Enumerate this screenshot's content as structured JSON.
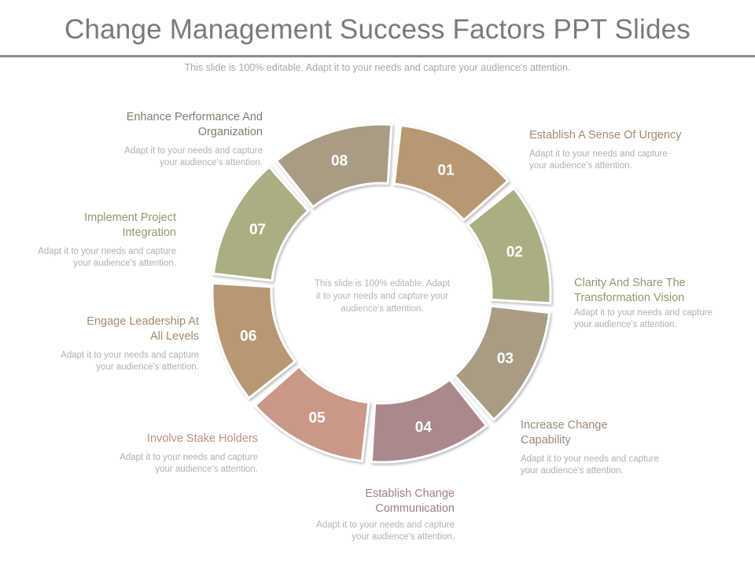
{
  "title": "Change Management Success Factors PPT Slides",
  "subtitle": "This slide is 100% editable. Adapt it to your needs and capture your audience's attention.",
  "center_text": "This slide is 100% editable. Adapt it to your needs and capture your audience's attention.",
  "segments": [
    {
      "number": "01",
      "title": "Establish A Sense Of Urgency",
      "desc": "Adapt it to your needs and capture your audience's attention.",
      "color": "#b79873",
      "label_color": "#a38a6c"
    },
    {
      "number": "02",
      "title": "Clarity And Share The Transformation Vision",
      "desc": "Adapt it to your needs and capture your audience's attention.",
      "color": "#aaae80",
      "label_color": "#93976d"
    },
    {
      "number": "03",
      "title": "Increase Change Capability",
      "desc": "Adapt it to your needs and capture your audience's attention.",
      "color": "#a99c85",
      "label_color": "#98897a"
    },
    {
      "number": "04",
      "title": "Establish Change Communication",
      "desc": "Adapt it to your needs and capture your audience's attention.",
      "color": "#ad888a",
      "label_color": "#a07e80"
    },
    {
      "number": "05",
      "title": "Involve  Stake Holders",
      "desc": "Adapt it to your needs and capture your audience's attention.",
      "color": "#c99888",
      "label_color": "#bd8e7e"
    },
    {
      "number": "06",
      "title": "Engage Leadership At All Levels",
      "desc": "Adapt it to your needs and capture your audience's attention.",
      "color": "#b79873",
      "label_color": "#a38a6c"
    },
    {
      "number": "07",
      "title": "Implement  Project Integration",
      "desc": "Adapt it to your needs and capture your audience's attention.",
      "color": "#aaae80",
      "label_color": "#93976d"
    },
    {
      "number": "08",
      "title": "Enhance Performance And Organization",
      "desc": "Adapt it to your needs and capture your audience's attention.",
      "color": "#a99c85",
      "label_color": "#857b6c"
    }
  ]
}
